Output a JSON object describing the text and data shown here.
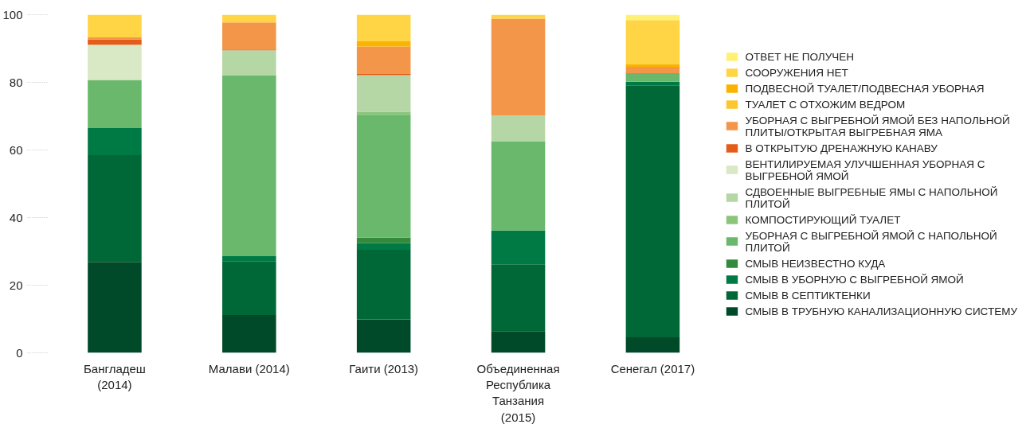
{
  "chart_data": {
    "type": "bar",
    "stacked": true,
    "categories": [
      "Бангладеш (2014)",
      "Малави (2014)",
      "Гаити (2013)",
      "Объединенная Республика Танзания (2015)",
      "Сенегал (2017)"
    ],
    "ylim": [
      0,
      100
    ],
    "yticks": [
      0,
      20,
      40,
      60,
      80,
      100
    ],
    "grid": false,
    "legend": "right",
    "series": [
      {
        "name": "СМЫВ В ТРУБНУЮ КАНАЛИЗАЦИОННУЮ СИСТЕМУ",
        "color": "#004a29",
        "values": [
          26.9,
          11.2,
          9.9,
          6.4,
          4.6
        ]
      },
      {
        "name": "СМЫВ В СЕПТИКТЕНКИ",
        "color": "#006837",
        "values": [
          31.6,
          15.9,
          20.6,
          19.8,
          74.5
        ]
      },
      {
        "name": "СМЫВ В УБОРНУЮ С ВЫГРЕБНОЙ ЯМОЙ",
        "color": "#007a45",
        "values": [
          8.0,
          1.5,
          1.9,
          10.0,
          1.1
        ]
      },
      {
        "name": "СМЫВ НЕИЗВЕСТНО КУДА",
        "color": "#338a3c",
        "values": [
          0,
          0,
          1.7,
          0,
          0
        ]
      },
      {
        "name": "УБОРНАЯ С ВЫГРЕБНОЙ ЯМОЙ С НАПОЛЬНОЙ ПЛИТОЙ",
        "color": "#69b86b",
        "values": [
          14.2,
          53.5,
          36.3,
          26.4,
          2.5
        ]
      },
      {
        "name": "КОМПОСТИРУЮЩИЙ ТУАЛЕТ",
        "color": "#8cc57a",
        "values": [
          0,
          0,
          0.9,
          0,
          0
        ]
      },
      {
        "name": "СДВОЕННЫЕ ВЫГРЕБНЫЕ ЯМЫ С НАПОЛЬНОЙ ПЛИТОЙ",
        "color": "#b5d6a5",
        "values": [
          0,
          7.4,
          10.8,
          7.6,
          0
        ]
      },
      {
        "name": "ВЕНТИЛИРУЕМАЯ УЛУЧШЕННАЯ УБОРНАЯ С ВЫГРЕБНОЙ ЯМОЙ",
        "color": "#d9e8c5",
        "values": [
          10.4,
          0,
          0,
          0,
          0
        ]
      },
      {
        "name": "В ОТКРЫТУЮ ДРЕНАЖНУЮ КАНАВУ",
        "color": "#e35d18",
        "values": [
          1.6,
          0.2,
          0.4,
          0,
          0
        ]
      },
      {
        "name": "УБОРНАЯ С ВЫГРЕБНОЙ ЯМОЙ БЕЗ НАПОЛЬНОЙ ПЛИТЫ/ОТКРЫТАЯ ВЫГРЕБНАЯ ЯМА",
        "color": "#f39649",
        "values": [
          0.6,
          8.0,
          8.1,
          28.6,
          1.9
        ]
      },
      {
        "name": "ТУАЛЕТ С ОТХОЖИМ ВЕДРОМ",
        "color": "#fcc72e",
        "values": [
          0,
          0,
          0,
          0,
          0
        ]
      },
      {
        "name": "ПОДВЕСНОЙ ТУАЛЕТ/ПОДВЕСНАЯ УБОРНАЯ",
        "color": "#f9b300",
        "values": [
          0,
          0,
          1.5,
          0,
          0.7
        ]
      },
      {
        "name": "СООРУЖЕНИЯ НЕТ",
        "color": "#ffd545",
        "values": [
          6.7,
          2.3,
          7.9,
          1.2,
          13.1
        ]
      },
      {
        "name": "ОТВЕТ НЕ ПОЛУЧЕН",
        "color": "#fff176",
        "values": [
          0,
          0,
          0,
          0,
          1.6
        ]
      }
    ]
  }
}
